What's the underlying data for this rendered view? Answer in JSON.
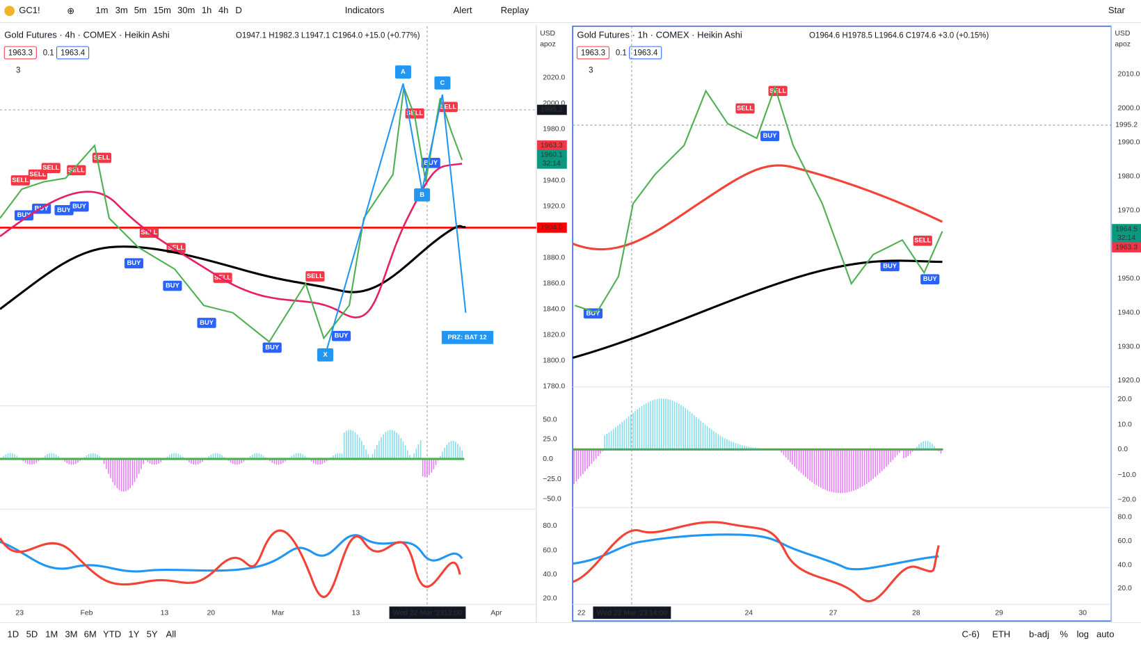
{
  "toolbar": {
    "symbol": "GC1!",
    "intervals": [
      "1m",
      "3m",
      "5m",
      "15m",
      "30m",
      "1h",
      "4h",
      "D"
    ],
    "indicators": "Indicators",
    "alert": "Alert",
    "replay": "Replay",
    "star": "Star"
  },
  "left_chart": {
    "title": "Gold Futures · 4h · COMEX · Heikin Ashi",
    "ohlc": "O1947.1 H1982.3 L1947.1 C1964.0 +15.0 (+0.77%)",
    "bid": "1963.3",
    "spread": "0.1",
    "ask": "1963.4",
    "indicators_count": "3",
    "currency": "USD",
    "scale": "apoz",
    "price_axis": [
      "2020.0",
      "2000.0",
      "1980.0",
      "1940.0",
      "1920.0",
      "1880.0",
      "1860.0",
      "1840.0",
      "1820.0",
      "1800.0",
      "1780.0"
    ],
    "price_badges": [
      "1995.2",
      "1963.3",
      "1960.1",
      "32:14",
      "1904.0"
    ],
    "osc_axis": [
      "50.0",
      "25.0",
      "0.0",
      "−25.0",
      "−50.0"
    ],
    "rsi_axis": [
      "80.0",
      "60.0",
      "40.0",
      "20.0"
    ],
    "time_axis": [
      "23",
      "Feb",
      "13",
      "20",
      "Mar",
      "13",
      "Apr"
    ],
    "crosshair": "Wed 22 Mar '23",
    "crosshair_time": "12:00",
    "signals": [
      "SELL",
      "SELL",
      "SELL",
      "SELL",
      "SELL",
      "SELL",
      "SELL",
      "SELL",
      "SELL",
      "SELL",
      "SELL",
      "BUY",
      "BUY",
      "BUY",
      "BUY",
      "BUY",
      "BUY",
      "BUY",
      "BUY",
      "BUY",
      "BUY"
    ],
    "pattern": [
      "A",
      "B",
      "C",
      "X"
    ],
    "prz": "PRZ: BAT 12"
  },
  "right_chart": {
    "title": "Gold Futures · 1h · COMEX · Heikin Ashi",
    "ohlc": "O1964.6 H1978.5 L1964.6 C1974.6 +3.0 (+0.15%)",
    "bid": "1963.3",
    "spread": "0.1",
    "ask": "1963.4",
    "indicators_count": "3",
    "currency": "USD",
    "scale": "apoz",
    "price_axis": [
      "2010.0",
      "2000.0",
      "1990.0",
      "1980.0",
      "1970.0",
      "1950.0",
      "1940.0",
      "1930.0",
      "1920.0"
    ],
    "price_badges": [
      "1995.2",
      "1964.5",
      "32:14",
      "1963.3"
    ],
    "osc_axis": [
      "20.0",
      "10.0",
      "0.0",
      "−10.0",
      "−20.0"
    ],
    "rsi_axis": [
      "80.0",
      "60.0",
      "40.0",
      "20.0"
    ],
    "time_axis": [
      "22",
      "24",
      "27",
      "28",
      "29",
      "30"
    ],
    "crosshair": "Wed 22 Mar '23",
    "crosshair_time": "14:00",
    "signals": [
      "SELL",
      "SELL",
      "SELL",
      "BUY",
      "BUY",
      "BUY",
      "BUY"
    ]
  },
  "bottom": {
    "ranges": [
      "1D",
      "5D",
      "1M",
      "3M",
      "6M",
      "YTD",
      "1Y",
      "5Y",
      "All"
    ],
    "right_tools": [
      "C-6)",
      "ETH",
      "b-adj",
      "%",
      "log",
      "auto"
    ]
  }
}
